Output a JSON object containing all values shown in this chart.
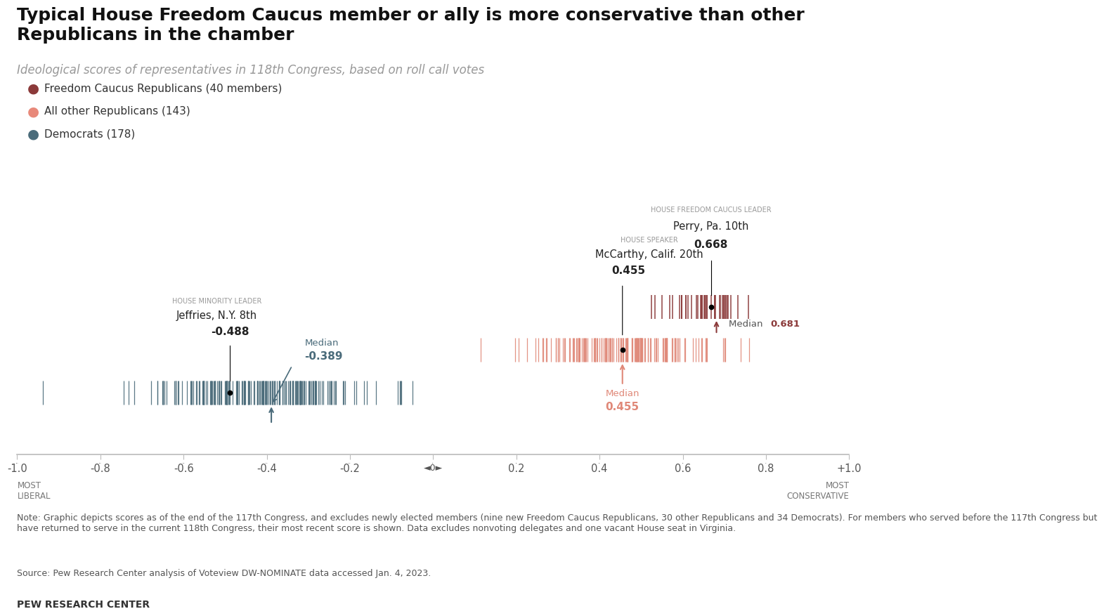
{
  "title": "Typical House Freedom Caucus member or ally is more conservative than other\nRepublicans in the chamber",
  "subtitle": "Ideological scores of representatives in 118th Congress, based on roll call votes",
  "legend": [
    {
      "label": "Freedom Caucus Republicans (40 members)",
      "color": "#8B3A3A"
    },
    {
      "label": "All other Republicans (143)",
      "color": "#E8897A"
    },
    {
      "label": "Democrats (178)",
      "color": "#4A6B7A"
    }
  ],
  "freedom_caucus_color": "#8B3A3A",
  "other_rep_color": "#E08878",
  "democrat_color": "#4A6B7A",
  "freedom_caucus_median": 0.681,
  "other_rep_median": 0.455,
  "democrat_median": -0.389,
  "perry_score": 0.668,
  "mccarthy_score": 0.455,
  "jeffries_score": -0.488,
  "note": "Note: Graphic depicts scores as of the end of the 117th Congress, and excludes newly elected members (nine new Freedom\nCaucus Republicans, 30 other Republicans and 34 Democrats). For members who served before the 117th Congress but\nhave returned to serve in the current 118th Congress, their most recent score is shown. Data excludes nonvoting delegates\nand one vacant House seat in Virginia.",
  "source": "Source: Pew Research Center analysis of Voteview DW-NOMINATE data accessed Jan. 4, 2023.",
  "branding": "PEW RESEARCH CENTER",
  "bg_color": "#FFFFFF"
}
